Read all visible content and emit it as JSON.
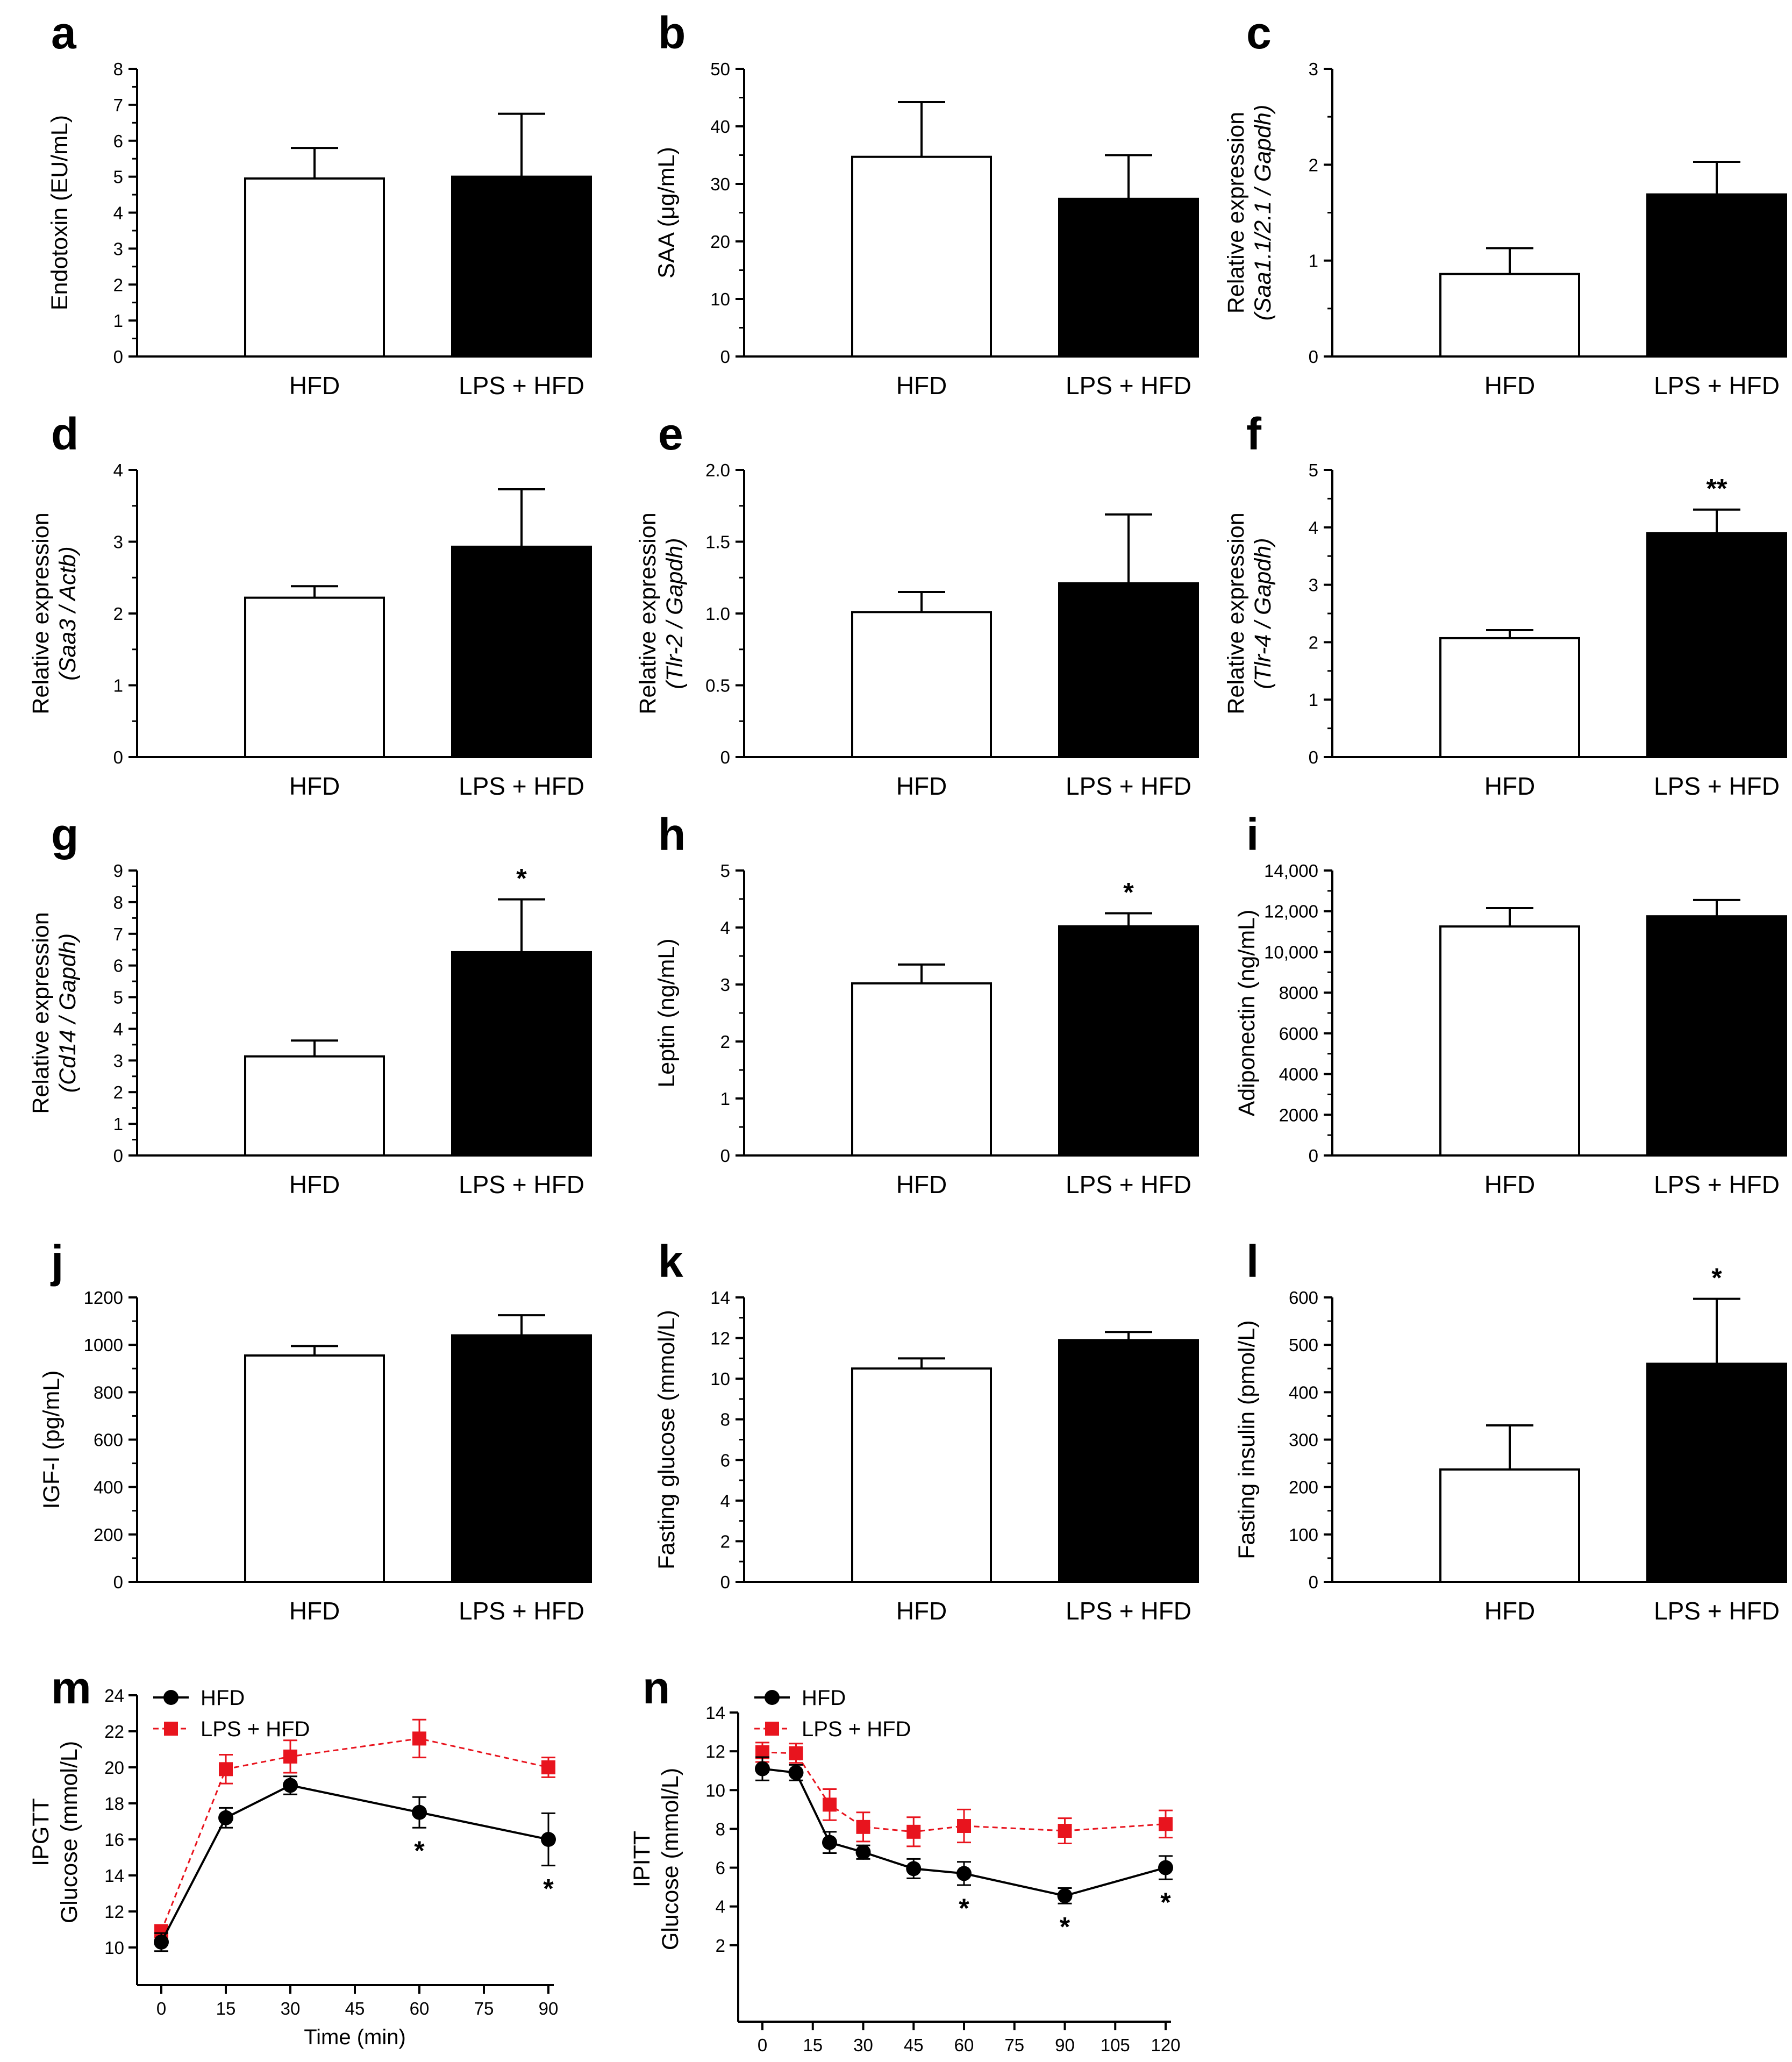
{
  "colors": {
    "hfd_bar": "#ffffff",
    "lps_bar": "#000000",
    "hfd_line": "#000000",
    "lps_line": "#e8141e"
  },
  "chart_data": [
    {
      "panel": "a",
      "type": "bar",
      "categories": [
        "HFD",
        "LPS + HFD"
      ],
      "values": [
        4.95,
        5.0
      ],
      "errors": [
        0.85,
        1.75
      ],
      "ylabel": "Endotoxin (EU/mL)",
      "ylabel_italic": "",
      "ylim": [
        0,
        8
      ],
      "yticks": [
        "0",
        "1",
        "2",
        "3",
        "4",
        "5",
        "6",
        "7",
        "8"
      ],
      "significance": [
        "",
        ""
      ]
    },
    {
      "panel": "b",
      "type": "bar",
      "categories": [
        "HFD",
        "LPS + HFD"
      ],
      "values": [
        34.7,
        27.4
      ],
      "errors": [
        9.5,
        7.6
      ],
      "ylabel": "SAA (μg/mL)",
      "ylabel_italic": "",
      "ylim": [
        0,
        50
      ],
      "yticks": [
        "0",
        "10",
        "20",
        "30",
        "40",
        "50"
      ],
      "significance": [
        "",
        ""
      ]
    },
    {
      "panel": "c",
      "type": "bar",
      "categories": [
        "HFD",
        "LPS + HFD"
      ],
      "values": [
        0.86,
        1.69
      ],
      "errors": [
        0.27,
        0.34
      ],
      "ylabel": "Relative expression",
      "ylabel_italic": "(Saa1.1/2.1 / Gapdh)",
      "ylim": [
        0,
        3
      ],
      "yticks": [
        "0",
        "1",
        "2",
        "3"
      ],
      "significance": [
        "",
        ""
      ]
    },
    {
      "panel": "d",
      "type": "bar",
      "categories": [
        "HFD",
        "LPS + HFD"
      ],
      "values": [
        2.22,
        2.93
      ],
      "errors": [
        0.16,
        0.8
      ],
      "ylabel": "Relative expression",
      "ylabel_italic": "(Saa3 / Actb)",
      "ylim": [
        0,
        4
      ],
      "yticks": [
        "0",
        "1",
        "2",
        "3",
        "4"
      ],
      "significance": [
        "",
        ""
      ]
    },
    {
      "panel": "e",
      "type": "bar",
      "categories": [
        "HFD",
        "LPS + HFD"
      ],
      "values": [
        1.01,
        1.21
      ],
      "errors": [
        0.14,
        0.48
      ],
      "ylabel": "Relative expression",
      "ylabel_italic": "(Tlr-2 / Gapdh)",
      "ylim": [
        0,
        2.0
      ],
      "yticks": [
        "0",
        "0.5",
        "1.0",
        "1.5",
        "2.0"
      ],
      "significance": [
        "",
        ""
      ]
    },
    {
      "panel": "f",
      "type": "bar",
      "categories": [
        "HFD",
        "LPS + HFD"
      ],
      "values": [
        2.07,
        3.9
      ],
      "errors": [
        0.14,
        0.41
      ],
      "ylabel": "Relative expression",
      "ylabel_italic": "(Tlr-4 / Gapdh)",
      "ylim": [
        0,
        5
      ],
      "yticks": [
        "0",
        "1",
        "2",
        "3",
        "4",
        "5"
      ],
      "significance": [
        "",
        "**"
      ]
    },
    {
      "panel": "g",
      "type": "bar",
      "categories": [
        "HFD",
        "LPS + HFD"
      ],
      "values": [
        3.13,
        6.42
      ],
      "errors": [
        0.5,
        1.67
      ],
      "ylabel": "Relative expression",
      "ylabel_italic": "(Cd14 / Gapdh)",
      "ylim": [
        0,
        9
      ],
      "yticks": [
        "0",
        "1",
        "2",
        "3",
        "4",
        "5",
        "6",
        "7",
        "8",
        "9"
      ],
      "significance": [
        "",
        "*"
      ]
    },
    {
      "panel": "h",
      "type": "bar",
      "categories": [
        "HFD",
        "LPS + HFD"
      ],
      "values": [
        3.02,
        4.02
      ],
      "errors": [
        0.33,
        0.23
      ],
      "ylabel": "Leptin (ng/mL)",
      "ylabel_italic": "",
      "ylim": [
        0,
        5
      ],
      "yticks": [
        "0",
        "1",
        "2",
        "3",
        "4",
        "5"
      ],
      "significance": [
        "",
        "*"
      ]
    },
    {
      "panel": "i",
      "type": "bar",
      "categories": [
        "HFD",
        "LPS + HFD"
      ],
      "values": [
        11250,
        11750
      ],
      "errors": [
        900,
        800
      ],
      "ylabel": "Adiponectin (ng/mL)",
      "ylabel_italic": "",
      "ylim": [
        0,
        14000
      ],
      "yticks": [
        "0",
        "2000",
        "4000",
        "6000",
        "8000",
        "10,000",
        "12,000",
        "14,000"
      ],
      "significance": [
        "",
        ""
      ]
    },
    {
      "panel": "j",
      "type": "bar",
      "categories": [
        "HFD",
        "LPS + HFD"
      ],
      "values": [
        955,
        1040
      ],
      "errors": [
        40,
        85
      ],
      "ylabel": "IGF-I (pg/mL)",
      "ylabel_italic": "",
      "ylim": [
        0,
        1200
      ],
      "yticks": [
        "0",
        "200",
        "400",
        "600",
        "800",
        "1000",
        "1200"
      ],
      "significance": [
        "",
        ""
      ]
    },
    {
      "panel": "k",
      "type": "bar",
      "categories": [
        "HFD",
        "LPS + HFD"
      ],
      "values": [
        10.5,
        11.9
      ],
      "errors": [
        0.5,
        0.4
      ],
      "ylabel": "Fasting glucose (mmol/L)",
      "ylabel_italic": "",
      "ylim": [
        0,
        14
      ],
      "yticks": [
        "0",
        "2",
        "4",
        "6",
        "8",
        "10",
        "12",
        "14"
      ],
      "significance": [
        "",
        ""
      ]
    },
    {
      "panel": "l",
      "type": "bar",
      "categories": [
        "HFD",
        "LPS + HFD"
      ],
      "values": [
        237,
        460
      ],
      "errors": [
        93,
        137
      ],
      "ylabel": "Fasting insulin (pmol/L)",
      "ylabel_italic": "",
      "ylim": [
        0,
        600
      ],
      "yticks": [
        "0",
        "100",
        "200",
        "300",
        "400",
        "500",
        "600"
      ],
      "significance": [
        "",
        "*"
      ]
    },
    {
      "panel": "m",
      "type": "line",
      "x": [
        0,
        15,
        30,
        60,
        90
      ],
      "xlim": [
        0,
        90
      ],
      "xticks": [
        "0",
        "15",
        "30",
        "45",
        "60",
        "75",
        "90"
      ],
      "ylim": [
        10,
        24
      ],
      "yticks": [
        "10",
        "12",
        "14",
        "16",
        "18",
        "20",
        "22",
        "24"
      ],
      "ylabel": "IPGTT",
      "ylabel2": "Glucose (mmol/L)",
      "xlabel": "Time (min)",
      "series": [
        {
          "name": "HFD",
          "values": [
            10.3,
            17.2,
            19.0,
            17.5,
            16.0
          ],
          "errors": [
            0.5,
            0.55,
            0.5,
            0.85,
            1.45
          ]
        },
        {
          "name": "LPS + HFD",
          "values": [
            10.9,
            19.9,
            20.6,
            21.6,
            20.0
          ],
          "errors": [
            0.35,
            0.8,
            0.9,
            1.05,
            0.55
          ]
        }
      ],
      "significance": [
        "",
        "",
        "",
        "*",
        "*"
      ]
    },
    {
      "panel": "n",
      "type": "line",
      "x": [
        0,
        10,
        20,
        30,
        45,
        60,
        90,
        120
      ],
      "xlim": [
        0,
        120
      ],
      "xticks": [
        "0",
        "15",
        "30",
        "45",
        "60",
        "75",
        "90",
        "105",
        "120"
      ],
      "ylim": [
        0,
        14
      ],
      "yticks": [
        "2",
        "4",
        "6",
        "8",
        "10",
        "12",
        "14"
      ],
      "ylabel": "IPITT",
      "ylabel2": "Glucose (mmol/L)",
      "xlabel": "Time (min)",
      "series": [
        {
          "name": "HFD",
          "values": [
            11.1,
            10.9,
            7.3,
            6.8,
            5.95,
            5.7,
            4.55,
            6.0
          ],
          "errors": [
            0.6,
            0.4,
            0.55,
            0.35,
            0.5,
            0.6,
            0.4,
            0.6
          ]
        },
        {
          "name": "LPS + HFD",
          "values": [
            11.95,
            11.9,
            9.25,
            8.1,
            7.85,
            8.15,
            7.9,
            8.25
          ],
          "errors": [
            0.5,
            0.5,
            0.8,
            0.75,
            0.75,
            0.85,
            0.65,
            0.7
          ]
        }
      ],
      "significance": [
        "",
        "",
        "",
        "",
        "",
        "*",
        "*",
        "*"
      ]
    }
  ]
}
